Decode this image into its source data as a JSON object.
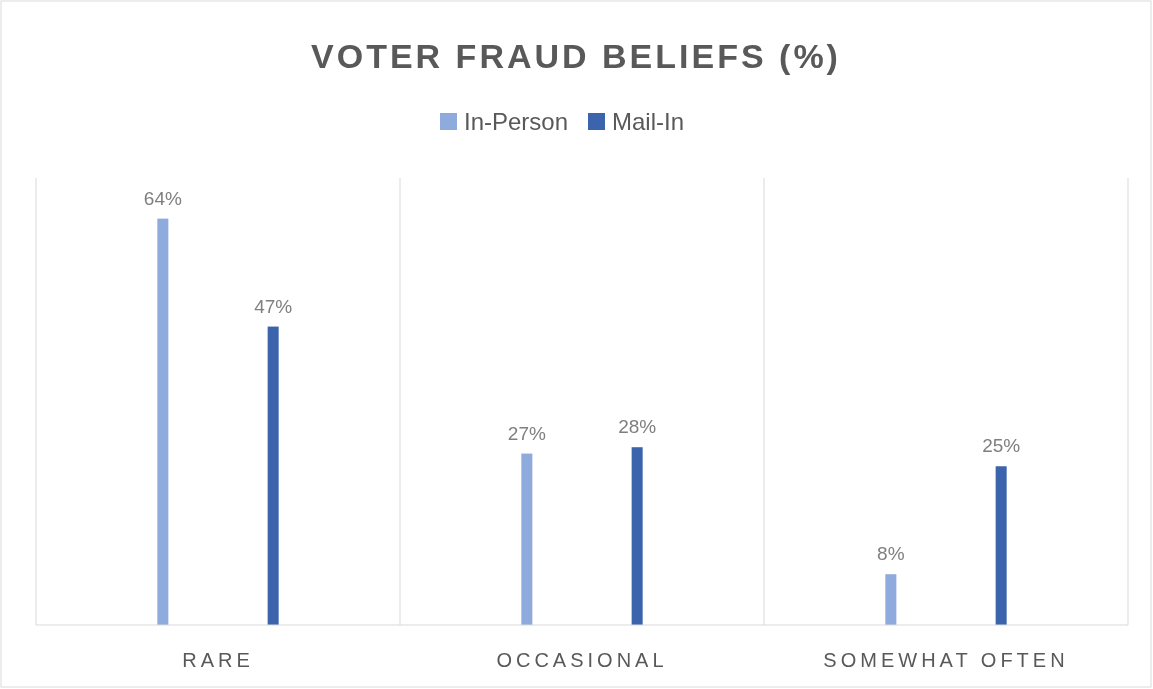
{
  "chart_data": {
    "type": "bar",
    "title": "VOTER FRAUD BELIEFS (%)",
    "categories": [
      "RARE",
      "OCCASIONAL",
      "SOMEWHAT OFTEN"
    ],
    "series": [
      {
        "name": "In-Person",
        "color": "#8faadc",
        "values": [
          64,
          27,
          8
        ],
        "value_labels": [
          "64%",
          "27%",
          "8%"
        ]
      },
      {
        "name": "Mail-In",
        "color": "#3b64ad",
        "values": [
          47,
          28,
          25
        ],
        "value_labels": [
          "47%",
          "28%",
          "25%"
        ]
      }
    ],
    "grid": "x",
    "legend": "top"
  }
}
